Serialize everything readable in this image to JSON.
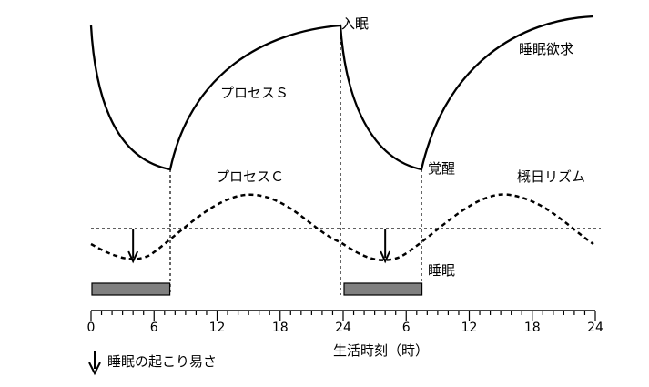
{
  "labels": {
    "sleep_onset": "入眠",
    "sleep_drive": "睡眠欲求",
    "process_s": "プロセスＳ",
    "process_c": "プロセスＣ",
    "wake": "覚醒",
    "circadian": "概日リズム",
    "sleep": "睡眠",
    "x_axis_title": "生活時刻（時）",
    "legend_arrow": "睡眠の起こり易さ"
  },
  "axis": {
    "ticks": [
      "0",
      "6",
      "12",
      "18",
      "24",
      "6",
      "12",
      "18",
      "24"
    ]
  },
  "sleep_periods": [
    {
      "start_hour": 0,
      "end_hour": 7.5
    },
    {
      "start_hour": 24,
      "end_hour": 31.5
    }
  ],
  "propensity_peaks_hour": [
    4,
    28
  ],
  "colors": {
    "line": "#000000",
    "sleep_bar": "#808080"
  }
}
